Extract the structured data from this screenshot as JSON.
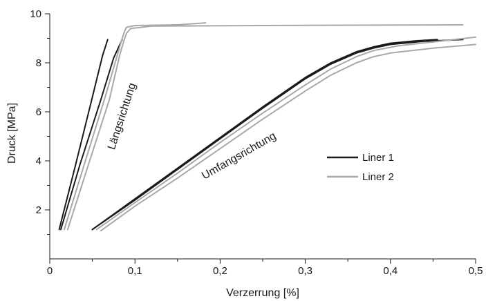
{
  "chart_data": {
    "type": "line",
    "title": "",
    "xlabel": "Verzerrung [%]",
    "ylabel": "Druck [MPa]",
    "xlim": [
      0,
      0.5
    ],
    "ylim": [
      0,
      10
    ],
    "xticks": [
      "0",
      "0,1",
      "0,2",
      "0,3",
      "0,4",
      "0,5"
    ],
    "yticks": [
      "2",
      "4",
      "6",
      "8",
      "10"
    ],
    "grid": false,
    "legend_position": "center-right",
    "legend": [
      {
        "label": "Liner 1",
        "color": "#1a1a1a"
      },
      {
        "label": "Liner 2",
        "color": "#a8a8a8"
      }
    ],
    "annotations": [
      "Längsrichtung",
      "Umfangsrichtung"
    ],
    "series": [
      {
        "group": "Längsrichtung",
        "liner": 1,
        "color": "#1a1a1a",
        "x": [
          0.011,
          0.03,
          0.05,
          0.062,
          0.068
        ],
        "y": [
          1.2,
          3.8,
          6.6,
          8.3,
          8.95
        ]
      },
      {
        "group": "Längsrichtung",
        "liner": 1,
        "color": "#1a1a1a",
        "x": [
          0.013,
          0.035,
          0.06,
          0.075,
          0.083,
          0.085
        ],
        "y": [
          1.2,
          3.8,
          6.5,
          8.2,
          8.8,
          8.95
        ]
      },
      {
        "group": "Längsrichtung",
        "liner": 2,
        "color": "#a8a8a8",
        "x": [
          0.017,
          0.04,
          0.065,
          0.08,
          0.085,
          0.088,
          0.09,
          0.1,
          0.15,
          0.183
        ],
        "y": [
          1.2,
          3.8,
          6.6,
          8.4,
          9.0,
          9.3,
          9.45,
          9.52,
          9.55,
          9.63
        ]
      },
      {
        "group": "Längsrichtung",
        "liner": 2,
        "color": "#a8a8a8",
        "x": [
          0.021,
          0.045,
          0.07,
          0.082,
          0.087,
          0.09,
          0.095,
          0.12,
          0.3,
          0.485
        ],
        "y": [
          1.2,
          3.8,
          6.5,
          8.3,
          8.9,
          9.2,
          9.4,
          9.5,
          9.53,
          9.55
        ]
      },
      {
        "group": "Umfangsrichtung",
        "liner": 1,
        "color": "#1a1a1a",
        "x": [
          0.05,
          0.1,
          0.15,
          0.2,
          0.25,
          0.3,
          0.33,
          0.36,
          0.38,
          0.4,
          0.43,
          0.455
        ],
        "y": [
          1.2,
          2.45,
          3.7,
          4.95,
          6.2,
          7.4,
          8.0,
          8.45,
          8.65,
          8.8,
          8.9,
          8.95
        ]
      },
      {
        "group": "Umfangsrichtung",
        "liner": 1,
        "color": "#1a1a1a",
        "x": [
          0.05,
          0.1,
          0.15,
          0.2,
          0.25,
          0.3,
          0.33,
          0.36,
          0.38,
          0.4,
          0.44,
          0.485
        ],
        "y": [
          1.2,
          2.4,
          3.65,
          4.9,
          6.15,
          7.35,
          7.95,
          8.4,
          8.6,
          8.75,
          8.88,
          8.95
        ]
      },
      {
        "group": "Umfangsrichtung",
        "liner": 2,
        "color": "#a8a8a8",
        "x": [
          0.055,
          0.1,
          0.15,
          0.2,
          0.25,
          0.3,
          0.33,
          0.36,
          0.38,
          0.41,
          0.45,
          0.5
        ],
        "y": [
          1.2,
          2.3,
          3.5,
          4.75,
          5.95,
          7.1,
          7.75,
          8.25,
          8.5,
          8.7,
          8.85,
          9.05
        ]
      },
      {
        "group": "Umfangsrichtung",
        "liner": 2,
        "color": "#a8a8a8",
        "x": [
          0.06,
          0.1,
          0.15,
          0.2,
          0.25,
          0.3,
          0.33,
          0.36,
          0.38,
          0.4,
          0.45,
          0.5
        ],
        "y": [
          1.15,
          2.15,
          3.3,
          4.5,
          5.7,
          6.85,
          7.5,
          8.0,
          8.25,
          8.4,
          8.6,
          8.75
        ]
      }
    ]
  }
}
